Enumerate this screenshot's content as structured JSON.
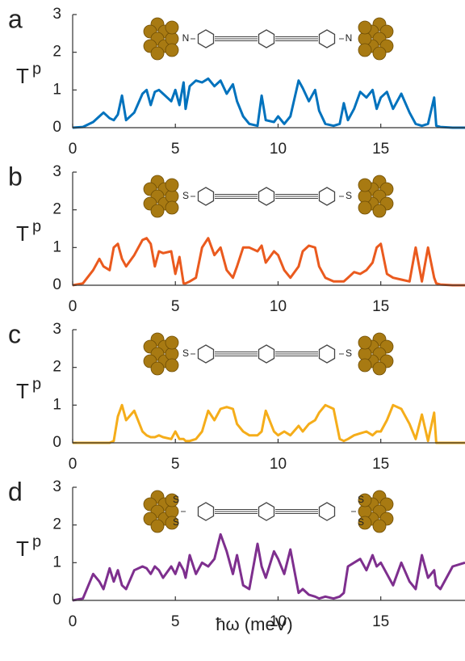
{
  "chart_data": [
    {
      "type": "line",
      "label": "a",
      "ylabel": "T",
      "ylabel_subscript": "p",
      "color": "#0072bd",
      "xlim": [
        0,
        19.1
      ],
      "ylim": [
        0,
        3
      ],
      "xticks": [
        0,
        5,
        10,
        15
      ],
      "yticks": [
        0,
        1,
        2,
        3
      ],
      "annotations": [
        "N",
        "N"
      ],
      "x": [
        0,
        0.5,
        1,
        1.3,
        1.5,
        1.8,
        2,
        2.2,
        2.4,
        2.6,
        3,
        3.4,
        3.6,
        3.8,
        4,
        4.2,
        4.4,
        4.8,
        5,
        5.2,
        5.4,
        5.5,
        5.7,
        6,
        6.3,
        6.6,
        6.9,
        7.2,
        7.5,
        7.8,
        8,
        8.3,
        8.6,
        9,
        9.2,
        9.4,
        9.8,
        10,
        10.3,
        10.6,
        11,
        11.2,
        11.5,
        11.8,
        12,
        12.3,
        12.7,
        13,
        13.2,
        13.4,
        13.7,
        14,
        14.3,
        14.6,
        14.8,
        15,
        15.3,
        15.6,
        16,
        16.4,
        16.7,
        17,
        17.3,
        17.6,
        17.7,
        17.9,
        18.5,
        19.1
      ],
      "values": [
        0,
        0.02,
        0.15,
        0.3,
        0.4,
        0.25,
        0.2,
        0.35,
        0.85,
        0.2,
        0.4,
        0.9,
        1.0,
        0.6,
        0.95,
        1.0,
        0.9,
        0.7,
        1.0,
        0.6,
        1.2,
        0.5,
        1.1,
        1.25,
        1.2,
        1.3,
        1.1,
        1.25,
        0.9,
        1.15,
        0.7,
        0.3,
        0.1,
        0.05,
        0.85,
        0.2,
        0.15,
        0.3,
        0.1,
        0.3,
        1.25,
        1.05,
        0.7,
        1.0,
        0.45,
        0.1,
        0.05,
        0.1,
        0.65,
        0.2,
        0.5,
        0.95,
        0.8,
        1.0,
        0.5,
        0.8,
        0.95,
        0.5,
        0.9,
        0.4,
        0.1,
        0.05,
        0.1,
        0.8,
        0.05,
        0.02,
        0,
        0
      ]
    },
    {
      "type": "line",
      "label": "b",
      "ylabel": "T",
      "ylabel_subscript": "p",
      "color": "#ea5a1e",
      "xlim": [
        0,
        19.1
      ],
      "ylim": [
        0,
        3
      ],
      "xticks": [
        0,
        5,
        10,
        15
      ],
      "yticks": [
        0,
        1,
        2,
        3
      ],
      "annotations": [
        "S",
        "S"
      ],
      "x": [
        0,
        0.5,
        1,
        1.3,
        1.5,
        1.8,
        2,
        2.2,
        2.4,
        2.6,
        3,
        3.4,
        3.6,
        3.8,
        4,
        4.2,
        4.4,
        4.8,
        5,
        5.2,
        5.4,
        5.5,
        5.7,
        6,
        6.3,
        6.6,
        6.9,
        7.2,
        7.5,
        7.8,
        8,
        8.3,
        8.6,
        9,
        9.2,
        9.4,
        9.8,
        10,
        10.3,
        10.6,
        11,
        11.2,
        11.5,
        11.8,
        12,
        12.3,
        12.7,
        13,
        13.2,
        13.4,
        13.7,
        14,
        14.3,
        14.6,
        14.8,
        15,
        15.3,
        15.6,
        16,
        16.4,
        16.7,
        17,
        17.3,
        17.6,
        17.7,
        17.9,
        18.5,
        19.1
      ],
      "values": [
        0,
        0.05,
        0.4,
        0.7,
        0.5,
        0.4,
        1.0,
        1.1,
        0.7,
        0.5,
        0.8,
        1.2,
        1.25,
        1.1,
        0.5,
        0.9,
        0.85,
        0.9,
        0.3,
        0.75,
        0.05,
        0.05,
        0.1,
        0.2,
        1.0,
        1.25,
        0.8,
        1.0,
        0.4,
        0.2,
        0.5,
        1.0,
        1.0,
        0.9,
        1.05,
        0.6,
        0.9,
        0.8,
        0.4,
        0.2,
        0.5,
        0.9,
        1.05,
        1.0,
        0.5,
        0.2,
        0.1,
        0.1,
        0.1,
        0.2,
        0.35,
        0.3,
        0.4,
        0.6,
        1.0,
        1.1,
        0.3,
        0.2,
        0.15,
        0.1,
        1.0,
        0.1,
        1.0,
        0.2,
        0.05,
        0.02,
        0,
        0
      ]
    },
    {
      "type": "line",
      "label": "c",
      "ylabel": "T",
      "ylabel_subscript": "p",
      "color": "#f5ad1a",
      "xlim": [
        0,
        19.1
      ],
      "ylim": [
        0,
        3
      ],
      "xticks": [
        0,
        5,
        10,
        15
      ],
      "yticks": [
        0,
        1,
        2,
        3
      ],
      "annotations": [
        "S",
        "S"
      ],
      "x": [
        0,
        0.5,
        1,
        1.3,
        1.5,
        1.8,
        2,
        2.2,
        2.4,
        2.6,
        3,
        3.4,
        3.6,
        3.8,
        4,
        4.2,
        4.4,
        4.8,
        5,
        5.2,
        5.4,
        5.5,
        5.7,
        6,
        6.3,
        6.6,
        6.9,
        7.2,
        7.5,
        7.8,
        8,
        8.3,
        8.6,
        9,
        9.2,
        9.4,
        9.8,
        10,
        10.3,
        10.6,
        11,
        11.2,
        11.5,
        11.8,
        12,
        12.3,
        12.7,
        13,
        13.2,
        13.4,
        13.7,
        14,
        14.3,
        14.6,
        14.8,
        15,
        15.3,
        15.6,
        16,
        16.4,
        16.7,
        17,
        17.3,
        17.6,
        17.7,
        17.9,
        18.5,
        19.1
      ],
      "values": [
        0,
        0,
        0,
        0,
        0,
        0,
        0.05,
        0.7,
        1.0,
        0.6,
        0.85,
        0.3,
        0.2,
        0.15,
        0.15,
        0.2,
        0.15,
        0.1,
        0.3,
        0.1,
        0.1,
        0.05,
        0.05,
        0.1,
        0.3,
        0.85,
        0.6,
        0.9,
        0.95,
        0.9,
        0.5,
        0.3,
        0.2,
        0.2,
        0.3,
        0.85,
        0.3,
        0.2,
        0.3,
        0.2,
        0.45,
        0.3,
        0.5,
        0.6,
        0.8,
        1.0,
        0.9,
        0.1,
        0.05,
        0.1,
        0.2,
        0.25,
        0.3,
        0.2,
        0.3,
        0.3,
        0.6,
        1.0,
        0.9,
        0.5,
        0.1,
        0.75,
        0.05,
        0.8,
        0,
        0,
        0,
        0
      ]
    },
    {
      "type": "line",
      "label": "d",
      "ylabel": "T",
      "ylabel_subscript": "p",
      "xlabel": "ħω (meV)",
      "color": "#7e2f8e",
      "xlim": [
        0,
        19.1
      ],
      "ylim": [
        0,
        3
      ],
      "xticks": [
        0,
        5,
        10,
        15
      ],
      "yticks": [
        0,
        1,
        2,
        3
      ],
      "annotations": [
        "S",
        "S",
        "S",
        "S"
      ],
      "x": [
        0,
        0.5,
        1,
        1.3,
        1.5,
        1.8,
        2,
        2.2,
        2.4,
        2.6,
        3,
        3.4,
        3.6,
        3.8,
        4,
        4.2,
        4.4,
        4.8,
        5,
        5.2,
        5.4,
        5.5,
        5.7,
        6,
        6.3,
        6.6,
        6.9,
        7.2,
        7.5,
        7.8,
        8,
        8.3,
        8.6,
        9,
        9.2,
        9.4,
        9.8,
        10,
        10.3,
        10.6,
        11,
        11.2,
        11.5,
        11.8,
        12,
        12.3,
        12.7,
        13,
        13.2,
        13.4,
        13.7,
        14,
        14.3,
        14.6,
        14.8,
        15,
        15.3,
        15.6,
        16,
        16.4,
        16.7,
        17,
        17.3,
        17.6,
        17.7,
        17.9,
        18.5,
        19.1
      ],
      "values": [
        0,
        0.05,
        0.7,
        0.5,
        0.3,
        0.85,
        0.5,
        0.8,
        0.4,
        0.3,
        0.8,
        0.9,
        0.85,
        0.7,
        0.9,
        0.8,
        0.6,
        0.9,
        0.7,
        1.0,
        0.8,
        0.6,
        1.2,
        0.7,
        1.0,
        0.9,
        1.1,
        1.75,
        1.3,
        0.7,
        1.2,
        0.4,
        0.3,
        1.5,
        0.9,
        0.6,
        1.3,
        1.1,
        0.7,
        1.35,
        0.2,
        0.3,
        0.15,
        0.1,
        0.05,
        0.1,
        0.05,
        0.1,
        0.2,
        0.9,
        1.0,
        1.1,
        0.8,
        1.2,
        0.9,
        1.0,
        0.7,
        0.4,
        1.0,
        0.5,
        0.3,
        1.2,
        0.6,
        0.8,
        0.4,
        0.3,
        0.9,
        1.0
      ]
    }
  ]
}
